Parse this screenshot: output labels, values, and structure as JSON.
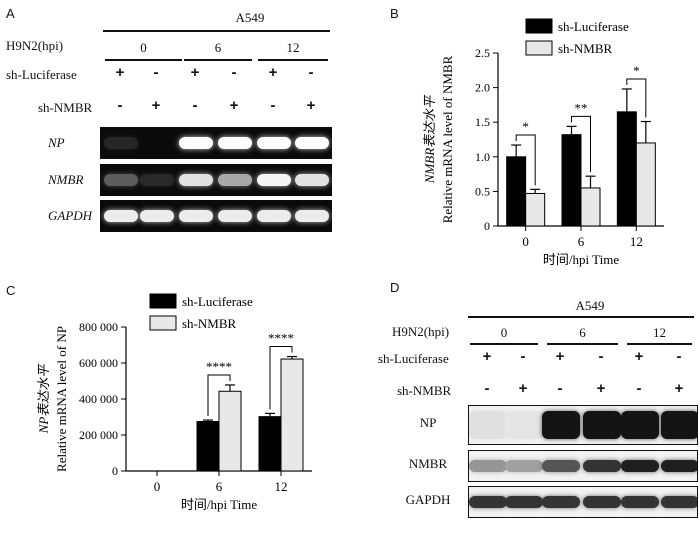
{
  "panel_a": {
    "letter": "A",
    "cell_line": "A549",
    "row_labels": {
      "infection": "H9N2(hpi)",
      "sh_luc": "sh-Luciferase",
      "sh_nmbr": "sh-NMBR"
    },
    "timepoints": [
      "0",
      "6",
      "12"
    ],
    "lanes": [
      {
        "sh_luc": "+",
        "sh_nmbr": "-"
      },
      {
        "sh_luc": "-",
        "sh_nmbr": "+"
      },
      {
        "sh_luc": "+",
        "sh_nmbr": "-"
      },
      {
        "sh_luc": "-",
        "sh_nmbr": "+"
      },
      {
        "sh_luc": "+",
        "sh_nmbr": "-"
      },
      {
        "sh_luc": "-",
        "sh_nmbr": "+"
      }
    ],
    "gels": [
      {
        "label": "NP",
        "intensity": [
          0.08,
          0.0,
          1.0,
          1.0,
          1.0,
          1.0
        ]
      },
      {
        "label": "NMBR",
        "intensity": [
          0.35,
          0.1,
          0.85,
          0.6,
          0.95,
          0.85
        ]
      },
      {
        "label": "GAPDH",
        "intensity": [
          0.9,
          0.9,
          0.9,
          0.9,
          0.9,
          0.9
        ]
      }
    ]
  },
  "panel_b": {
    "letter": "B",
    "chart_data": {
      "type": "bar",
      "categories": [
        "0",
        "6",
        "12"
      ],
      "series": [
        {
          "name": "sh-Luciferase",
          "color": "#000000",
          "values": [
            1.0,
            1.32,
            1.65
          ],
          "errors": [
            0.17,
            0.12,
            0.33
          ]
        },
        {
          "name": "sh-NMBR",
          "color": "#e8e8e8",
          "values": [
            0.47,
            0.55,
            1.2
          ],
          "errors": [
            0.06,
            0.17,
            0.31
          ]
        }
      ],
      "ylabel_cn": "NMBR表达水平",
      "ylabel_en": "Relative mRNA level of NMBR",
      "xlabel": "时间/hpi Time",
      "ylim": [
        0,
        2.5
      ],
      "yticks": [
        "0",
        "0.5",
        "1.0",
        "1.5",
        "2.0",
        "2.5"
      ],
      "significance": [
        "*",
        "**",
        "*"
      ],
      "legend": "top-right"
    }
  },
  "panel_c": {
    "letter": "C",
    "chart_data": {
      "type": "bar",
      "categories": [
        "0",
        "6",
        "12"
      ],
      "series": [
        {
          "name": "sh-Luciferase",
          "color": "#000000",
          "values": [
            0,
            275000,
            302000
          ],
          "errors": [
            0,
            8000,
            18000
          ]
        },
        {
          "name": "sh-NMBR",
          "color": "#e8e8e8",
          "values": [
            0,
            443000,
            622000
          ],
          "errors": [
            0,
            35000,
            14000
          ]
        }
      ],
      "ylabel_cn": "NP表达水平",
      "ylabel_en": "Relative mRNA level of NP",
      "xlabel": "时间/hpi Time",
      "ylim": [
        0,
        800000
      ],
      "yticks": [
        "0",
        "200 000",
        "400 000",
        "600 000",
        "800 000"
      ],
      "significance": [
        "",
        "****",
        "****"
      ],
      "legend": "top-left"
    }
  },
  "panel_d": {
    "letter": "D",
    "cell_line": "A549",
    "row_labels": {
      "infection": "H9N2(hpi)",
      "sh_luc": "sh-Luciferase",
      "sh_nmbr": "sh-NMBR"
    },
    "timepoints": [
      "0",
      "6",
      "12"
    ],
    "lanes": [
      {
        "sh_luc": "+",
        "sh_nmbr": "-"
      },
      {
        "sh_luc": "-",
        "sh_nmbr": "+"
      },
      {
        "sh_luc": "+",
        "sh_nmbr": "-"
      },
      {
        "sh_luc": "-",
        "sh_nmbr": "+"
      },
      {
        "sh_luc": "+",
        "sh_nmbr": "-"
      },
      {
        "sh_luc": "-",
        "sh_nmbr": "+"
      }
    ],
    "blots": [
      {
        "label": "NP",
        "intensity": [
          0.05,
          0.03,
          1.0,
          1.0,
          1.0,
          1.0
        ]
      },
      {
        "label": "NMBR",
        "intensity": [
          0.4,
          0.35,
          0.7,
          0.85,
          0.95,
          0.95
        ]
      },
      {
        "label": "GAPDH",
        "intensity": [
          0.85,
          0.85,
          0.85,
          0.85,
          0.85,
          0.85
        ]
      }
    ]
  }
}
